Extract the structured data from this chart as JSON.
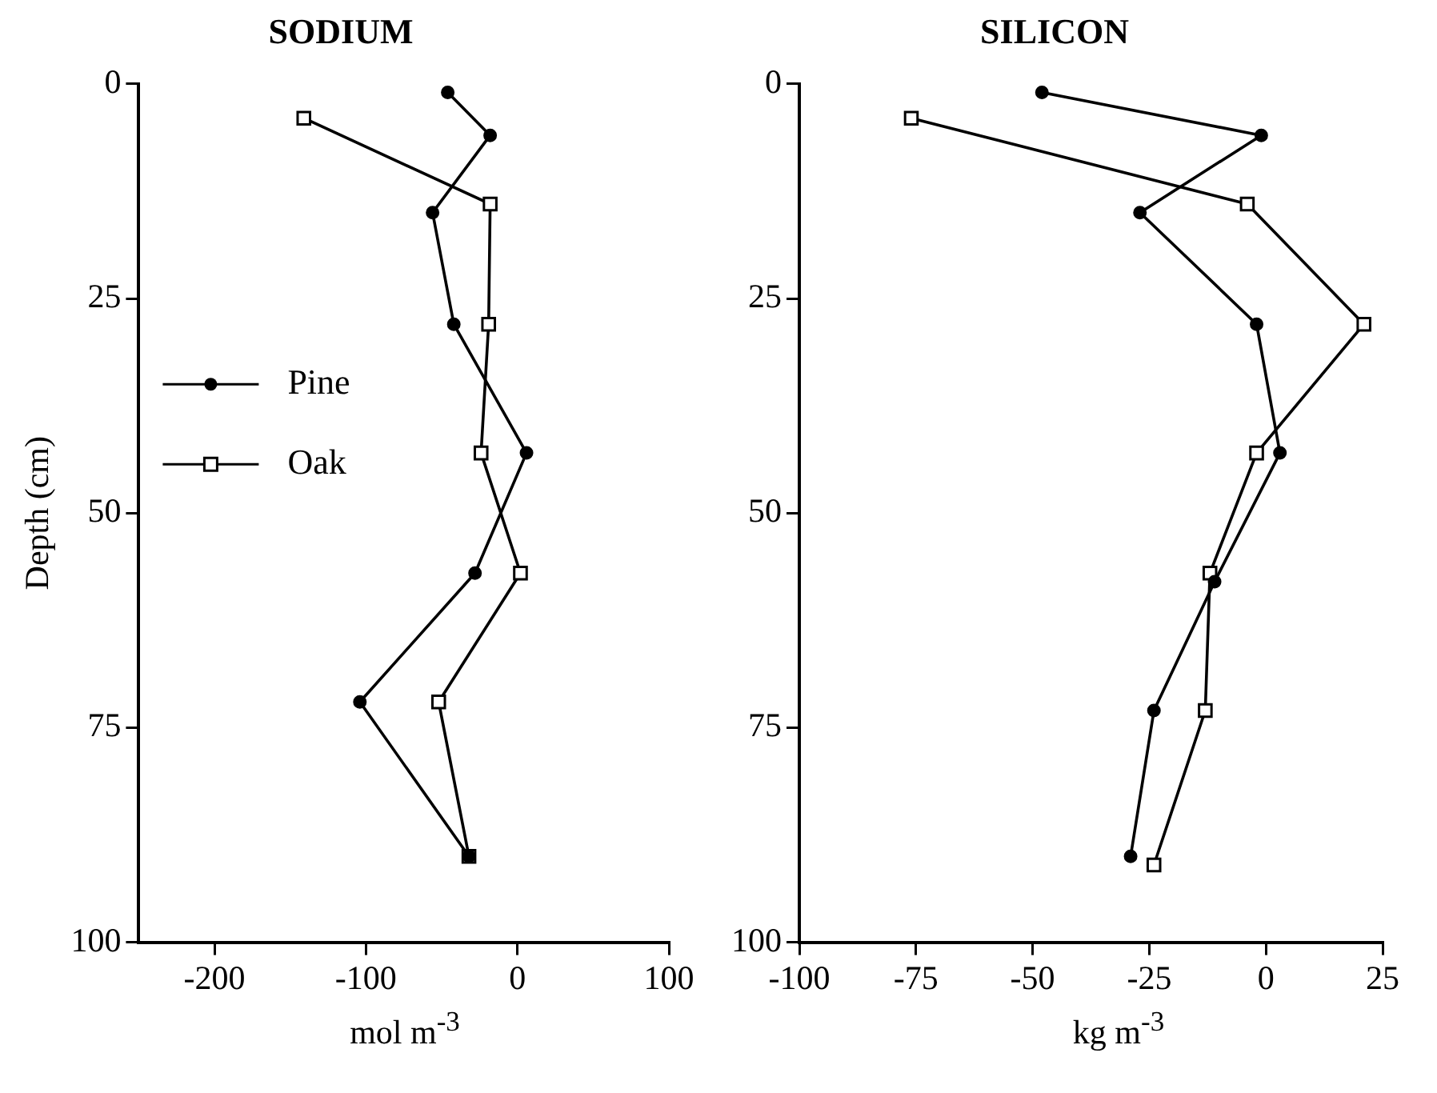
{
  "chart_data": [
    {
      "type": "line",
      "title": "SODIUM",
      "xlabel": "mol m$^{-3}$",
      "ylabel": "Depth (cm)",
      "xlim": [
        -250,
        100
      ],
      "xticks": [
        -200,
        -100,
        0,
        100
      ],
      "ylim": [
        100,
        0
      ],
      "yticks": [
        0,
        25,
        50,
        75,
        100
      ],
      "legend": "left",
      "grid": false,
      "series": [
        {
          "name": "Pine",
          "color": "#000000",
          "marker": "circle",
          "x": [
            -46,
            -18,
            -56,
            -42,
            6,
            -28,
            -104,
            -32
          ],
          "values": [
            1,
            6,
            15,
            28,
            43,
            57,
            72,
            90
          ]
        },
        {
          "name": "Oak",
          "color": "#000000",
          "marker": "square",
          "x": [
            -141,
            -18,
            -19,
            -24,
            2,
            -52,
            -32
          ],
          "values": [
            4,
            14,
            28,
            43,
            57,
            72,
            90
          ]
        }
      ]
    },
    {
      "type": "line",
      "title": "SILICON",
      "xlabel": "kg m$^{-3}$",
      "xlim": [
        -100,
        25
      ],
      "xticks": [
        -100,
        -75,
        -50,
        -25,
        0,
        25
      ],
      "ylim": [
        100,
        0
      ],
      "yticks": [
        0,
        25,
        50,
        75,
        100
      ],
      "grid": false,
      "series": [
        {
          "color": "#000000",
          "marker": "circle",
          "x": [
            -48,
            -1,
            -27,
            -2,
            3,
            -11,
            -24,
            -29
          ],
          "values": [
            1,
            6,
            15,
            28,
            43,
            58,
            73,
            90
          ]
        },
        {
          "color": "#000000",
          "marker": "square",
          "x": [
            -76,
            -4,
            21,
            -2,
            -12,
            -13,
            -24
          ],
          "values": [
            4,
            14,
            28,
            43,
            57,
            73,
            91
          ]
        }
      ]
    }
  ]
}
